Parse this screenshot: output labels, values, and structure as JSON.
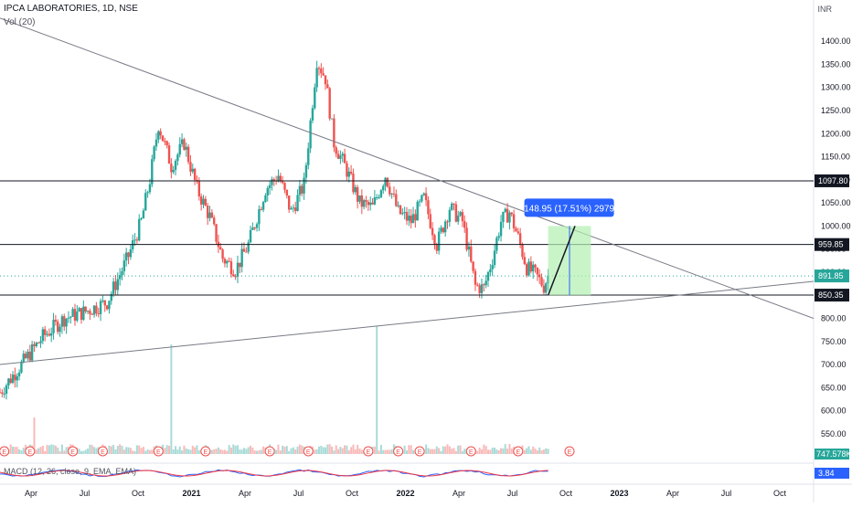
{
  "header": {
    "symbol_line": "IPCA LABORATORIES, 1D, NSE",
    "volume_label": "Vol (20)",
    "macd_label": "MACD (12, 26, close, 9, EMA, EMA)",
    "currency": "INR"
  },
  "colors": {
    "up": "#26a69a",
    "down": "#ef5350",
    "line": "#131722",
    "measure_box": "#b2f0b0",
    "measure_label_bg": "#2962ff",
    "macd_line": "#2962ff",
    "signal_line": "#f23645"
  },
  "chart_data": {
    "type": "candlestick",
    "x_tick_labels": [
      "Apr",
      "Jul",
      "Oct",
      "2021",
      "Apr",
      "Jul",
      "Oct",
      "2022",
      "Apr",
      "Jul",
      "Oct",
      "2023",
      "Apr",
      "Jul",
      "Oct"
    ],
    "y_ticks": [
      550,
      600,
      650,
      700,
      750,
      800,
      850,
      900,
      950,
      1000,
      1050,
      1100,
      1150,
      1200,
      1250,
      1300,
      1350,
      1400
    ],
    "ylim": [
      530,
      1430
    ],
    "price_path": [
      [
        0,
        640
      ],
      [
        5,
        700
      ],
      [
        10,
        760
      ],
      [
        15,
        800
      ],
      [
        20,
        815
      ],
      [
        25,
        835
      ],
      [
        30,
        935
      ],
      [
        33,
        1010
      ],
      [
        35,
        1100
      ],
      [
        37,
        1220
      ],
      [
        40,
        1130
      ],
      [
        43,
        1180
      ],
      [
        46,
        1080
      ],
      [
        49,
        1020
      ],
      [
        52,
        930
      ],
      [
        55,
        905
      ],
      [
        58,
        960
      ],
      [
        62,
        1080
      ],
      [
        65,
        1110
      ],
      [
        68,
        1030
      ],
      [
        71,
        1090
      ],
      [
        74,
        1360
      ],
      [
        76,
        1320
      ],
      [
        78,
        1180
      ],
      [
        81,
        1120
      ],
      [
        84,
        1050
      ],
      [
        87,
        1040
      ],
      [
        90,
        1110
      ],
      [
        93,
        1030
      ],
      [
        96,
        1010
      ],
      [
        99,
        1060
      ],
      [
        102,
        960
      ],
      [
        105,
        1040
      ],
      [
        108,
        1010
      ],
      [
        111,
        870
      ],
      [
        113,
        865
      ],
      [
        115,
        930
      ],
      [
        117,
        1010
      ],
      [
        119,
        1030
      ],
      [
        121,
        975
      ],
      [
        123,
        910
      ],
      [
        125,
        895
      ],
      [
        127,
        870
      ],
      [
        128,
        891.85
      ]
    ],
    "horizontal_levels": [
      1097.8,
      959.85,
      850.35
    ],
    "last_price": 891.85,
    "last_price_label": "891.85",
    "level_labels": [
      "1097.80",
      "959.85",
      "850.35"
    ],
    "trendlines": [
      {
        "from": [
          0,
          1450
        ],
        "to": [
          190,
          800
        ]
      },
      {
        "from": [
          0,
          700
        ],
        "to": [
          190,
          880
        ]
      }
    ],
    "measure": {
      "from": [
        128,
        850
      ],
      "to": [
        138,
        1000
      ],
      "label": "148.95 (17.51%) 2979"
    },
    "volume": {
      "label": "747.578K",
      "spikes": [
        [
          8,
          40
        ],
        [
          40,
          120
        ],
        [
          88,
          140
        ]
      ]
    },
    "macd": {
      "value_label": "3.84"
    },
    "earnings_markers_x": [
      1,
      7,
      17,
      24,
      37,
      48,
      63,
      72,
      86,
      93,
      98,
      110,
      121,
      133
    ]
  }
}
